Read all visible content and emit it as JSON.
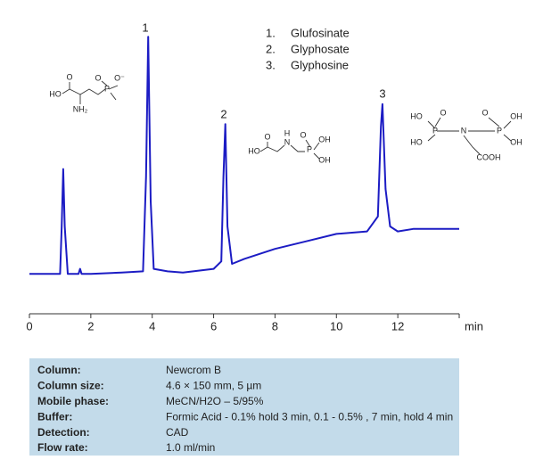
{
  "chart_data": {
    "type": "line",
    "xlabel": "min",
    "xlim": [
      0,
      14
    ],
    "xticks": [
      0,
      2,
      4,
      6,
      8,
      10,
      12
    ],
    "ylim": [
      0,
      100
    ],
    "color": "#1c1cc4",
    "x": [
      0,
      1.0,
      1.05,
      1.1,
      1.15,
      1.25,
      1.6,
      1.65,
      1.7,
      2.0,
      3.0,
      3.7,
      3.8,
      3.87,
      3.95,
      4.05,
      4.5,
      5.0,
      6.0,
      6.25,
      6.32,
      6.38,
      6.45,
      6.6,
      7.0,
      8.0,
      9.0,
      10.0,
      11.0,
      11.35,
      11.45,
      11.5,
      11.6,
      11.75,
      12.0,
      12.5,
      13.0,
      14.0
    ],
    "values": [
      1,
      1,
      20,
      43,
      20,
      1,
      1,
      3,
      1,
      1,
      1.5,
      2,
      40,
      96,
      30,
      3,
      2,
      1.5,
      3,
      6,
      40,
      61,
      20,
      5,
      7,
      11,
      14,
      17,
      18,
      24,
      60,
      69,
      35,
      20,
      18,
      19,
      19,
      19
    ],
    "peak_labels": [
      "1",
      "2",
      "3"
    ],
    "compounds": [
      {
        "number": "1.",
        "name": "Glufosinate"
      },
      {
        "number": "2.",
        "name": "Glyphosate"
      },
      {
        "number": "3.",
        "name": "Glyphosine"
      }
    ],
    "structures": [
      {
        "labels": [
          "O",
          "HO",
          "NH₂",
          "P",
          "O",
          "O⁻"
        ]
      },
      {
        "labels": [
          "O",
          "HO",
          "H",
          "N",
          "O",
          "P",
          "OH",
          "OH"
        ]
      },
      {
        "labels": [
          "HO",
          "O",
          "P",
          "HO",
          "N",
          "O",
          "P",
          "OH",
          "OH",
          "COOH"
        ]
      }
    ]
  },
  "conditions": [
    [
      "Column:",
      "Newcrom B"
    ],
    [
      "Column size:",
      "4.6 × 150 mm, 5 µm"
    ],
    [
      "Mobile phase:",
      "MeCN/H2O – 5/95%"
    ],
    [
      "Buffer:",
      "Formic Acid - 0.1%  hold 3 min, 0.1 - 0.5% , 7 min, hold 4 min"
    ],
    [
      "Detection:",
      "CAD"
    ],
    [
      "Flow rate:",
      "1.0 ml/min"
    ]
  ]
}
